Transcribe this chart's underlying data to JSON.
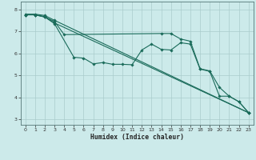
{
  "xlabel": "Humidex (Indice chaleur)",
  "bg_color": "#cceaea",
  "grid_color": "#aacccc",
  "line_color": "#1a6b5a",
  "xlim": [
    -0.5,
    23.5
  ],
  "ylim": [
    2.75,
    8.35
  ],
  "yticks": [
    3,
    4,
    5,
    6,
    7,
    8
  ],
  "xticks": [
    0,
    1,
    2,
    3,
    4,
    5,
    6,
    7,
    8,
    9,
    10,
    11,
    12,
    13,
    14,
    15,
    16,
    17,
    18,
    19,
    20,
    21,
    22,
    23
  ],
  "series": [
    {
      "x": [
        0,
        1,
        2,
        3,
        4,
        14,
        15,
        16,
        17,
        18,
        19,
        20,
        21,
        22,
        23
      ],
      "y": [
        7.75,
        7.75,
        7.65,
        7.45,
        6.85,
        6.9,
        6.9,
        6.65,
        6.55,
        5.3,
        5.2,
        4.45,
        4.05,
        3.8,
        3.3
      ]
    },
    {
      "x": [
        0,
        1,
        2,
        3,
        5,
        6,
        7,
        8,
        9,
        10,
        11,
        12,
        13,
        14,
        15,
        16,
        17,
        18,
        19,
        20,
        21,
        22,
        23
      ],
      "y": [
        7.75,
        7.75,
        7.65,
        7.35,
        5.82,
        5.78,
        5.52,
        5.58,
        5.5,
        5.5,
        5.48,
        6.15,
        6.42,
        6.18,
        6.15,
        6.48,
        6.42,
        5.28,
        5.18,
        4.05,
        4.05,
        3.8,
        3.3
      ]
    },
    {
      "x": [
        0,
        1,
        2,
        3,
        23
      ],
      "y": [
        7.75,
        7.75,
        7.67,
        7.38,
        3.3
      ]
    },
    {
      "x": [
        0,
        1,
        2,
        3,
        23
      ],
      "y": [
        7.78,
        7.78,
        7.72,
        7.5,
        3.3
      ]
    }
  ]
}
